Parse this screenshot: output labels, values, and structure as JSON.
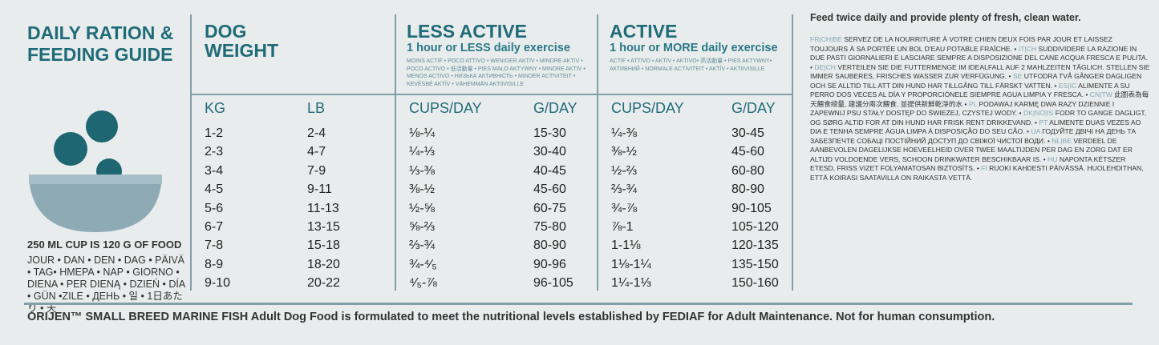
{
  "guide": {
    "title": "DAILY RATION & FEEDING GUIDE",
    "cup_note": "250 ML CUP IS 120 G OF FOOD",
    "day_words": "JOUR • DAN • DEN • DAG • PÄIVÄ • TAG• HMEPA • NAP • GIORNO • DIENA • PER DIENĄ • DZIEŃ • DÍA • GÜN •ZILE • ДЕНЬ • 일 • 1日あたり • 天"
  },
  "table": {
    "groups": [
      {
        "title": "DOG WEIGHT"
      },
      {
        "title": "LESS ACTIVE",
        "subtitle": "1 hour or LESS daily exercise",
        "translations": "MOINS ACTIF • POCO ATTIVO • WENIGER AKTIV • MINDRE AKTIV • POCO ACTIVO • 低活動量 • PIES MAŁO AKTYWNY • MINDRE AKTIV • MENOS ACTIVO • НИЗЬКА АКТИВНІСТЬ • MINDER ACTIVITEIT • KEVÉSBÉ AKTÍV • VÄHEMMÄN AKTIIVISILLE"
      },
      {
        "title": "ACTIVE",
        "subtitle": "1 hour or MORE daily exercise",
        "translations": "ACTIF • ATTIVO • AKTIV • AKTIVO• 高活動量 • PIES AKTYWNY• АКТИВНИЙ • NORMALE ACTIVITEIT • AKTÍV • AKTIIVISILLE"
      }
    ],
    "columns": [
      "KG",
      "LB",
      "CUPS/DAY",
      "G/DAY",
      "CUPS/DAY",
      "G/DAY"
    ],
    "rows": [
      [
        "1-2",
        "2-4",
        "⅛-¼",
        "15-30",
        "¼-⅜",
        "30-45"
      ],
      [
        "2-3",
        "4-7",
        "¼-⅓",
        "30-40",
        "⅜-½",
        "45-60"
      ],
      [
        "3-4",
        "7-9",
        "⅓-⅜",
        "40-45",
        "½-⅔",
        "60-80"
      ],
      [
        "4-5",
        "9-11",
        "⅜-½",
        "45-60",
        "⅔-¾",
        "80-90"
      ],
      [
        "5-6",
        "11-13",
        "½-⅝",
        "60-75",
        "¾-⅞",
        "90-105"
      ],
      [
        "6-7",
        "13-15",
        "⅝-⅔",
        "75-80",
        "⅞-1",
        "105-120"
      ],
      [
        "7-8",
        "15-18",
        "⅔-¾",
        "80-90",
        "1-1⅛",
        "120-135"
      ],
      [
        "8-9",
        "18-20",
        "¾-⁴⁄₅",
        "90-96",
        "1⅛-1¼",
        "135-150"
      ],
      [
        "9-10",
        "20-22",
        "⁴⁄₅-⅞",
        "96-105",
        "1¼-1⅓",
        "150-160"
      ]
    ]
  },
  "instructions": {
    "heading": "Feed twice daily and provide plenty of fresh, clean water.",
    "translations": [
      {
        "code": "FR|CH|BE",
        "text": "SERVEZ DE LA NOURRITURE À VOTRE CHIEN DEUX FOIS PAR JOUR ET LAISSEZ TOUJOURS À SA PORTÉE UN BOL D'EAU POTABLE FRAÎCHE. •"
      },
      {
        "code": "IT|CH",
        "text": "SUDDIVIDERE LA RAZIONE IN DUE PASTI GIORNALIERI E LASCIARE SEMPRE A DISPOSIZIONE DEL CANE ACQUA FRESCA E PULITA. •"
      },
      {
        "code": "DE|CH",
        "text": "VERTEILEN SIE DIE FUTTERMENGE IM IDEALFALL AUF 2 MAHLZEITEN TÄGLICH. STELLEN SIE IMMER SAUBERES, FRISCHES WASSER ZUR VERFÜGUNG. •"
      },
      {
        "code": "SE",
        "text": "UTFODRA TVÅ GÅNGER DAGLIGEN OCH SE ALLTID TILL ATT DIN HUND HAR TILLGÅNG TILL FÄRSKT VATTEN. •"
      },
      {
        "code": "ES|IC",
        "text": "ALIMENTE A SU PERRO DOS VECES AL DÍA Y PROPORCIÓNELE SIEMPRE AGUA LIMPIA Y FRESCA. •"
      },
      {
        "code": "CN|TW",
        "text": "此圖表為每天餵食總量, 建議分兩次餵食, 並提供新鮮乾淨的水 •"
      },
      {
        "code": "PL",
        "text": "PODAWAJ KARMĘ DWA RAZY DZIENNIE I ZAPEWNIJ PSU STAŁY DOSTĘP DO ŚWIEŻEJ, CZYSTEJ WODY. •"
      },
      {
        "code": "DK|NO|IS",
        "text": "FODR TO GANGE DAGLIGT, OG SØRG ALTID FOR AT DIN HUND HAR FRISK RENT DRIKKEVAND. •"
      },
      {
        "code": "PT",
        "text": "ALIMENTE DUAS VEZES AO DIA E TENHA SEMPRE ÁGUA LIMPA À DISPOSIÇÃO DO SEU CÃO. •"
      },
      {
        "code": "UA",
        "text": "ГОДУЙТЕ ДВІЧІ НА ДЕНЬ ТА ЗАБЕЗПЕЧТЕ СОБАЦІ ПОСТІЙНИЙ ДОСТУП ДО СВІЖОЇ ЧИСТОЇ ВОДИ. •"
      },
      {
        "code": "NL|BE",
        "text": "VERDEEL DE AANBEVOLEN DAGELIJKSE HOEVEELHEID OVER TWEE MAALTIJDEN PER DAG EN ZORG DAT ER ALTIJD VOLDOENDE VERS, SCHOON DRINKWATER BESCHIKBAAR IS. •"
      },
      {
        "code": "HU",
        "text": "NAPONTA KÉTSZER ETESD, FRISS VIZET FOLYAMATOSAN BIZTOSÍTS. •"
      },
      {
        "code": "FI",
        "text": "RUOKI KAHDESTI PÄIVÄSSÄ. HUOLEHDITHAN, ETTÄ KOIRASI SAATAVILLA ON RAIKASTA VETTÄ."
      }
    ]
  },
  "footer": "ORIJEN™ SMALL BREED MARINE FISH Adult Dog Food is formulated to meet the nutritional levels established by FEDIAF for Adult Maintenance. Not for human consumption."
}
